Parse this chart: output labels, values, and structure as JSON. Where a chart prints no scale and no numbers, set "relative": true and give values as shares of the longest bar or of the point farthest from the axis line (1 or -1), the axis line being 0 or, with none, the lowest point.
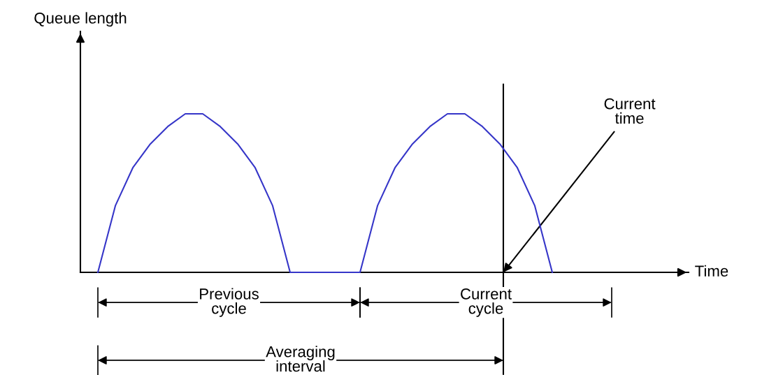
{
  "chart_data": {
    "type": "line",
    "relative": true,
    "marker": "none",
    "line_style": "solid",
    "categories": [
      null,
      null,
      null,
      null,
      null,
      null,
      null,
      null,
      null,
      null,
      null,
      null,
      null,
      null,
      null,
      null,
      null,
      null,
      null,
      null,
      null,
      null,
      null,
      null,
      null,
      null,
      null
    ],
    "series": [
      {
        "color": "#3535c8",
        "values": [
          0,
          0.42,
          0.66,
          0.81,
          0.92,
          1,
          1,
          0.92,
          0.81,
          0.66,
          0.42,
          0,
          0,
          0,
          0,
          0,
          0.42,
          0.66,
          0.81,
          0.92,
          1,
          1,
          0.92,
          0.81,
          0.66,
          0.42,
          0
        ]
      }
    ],
    "annotations": [
      "Queue length",
      "Time",
      "Current\ntime",
      "Previous\ncycle",
      "Current\ncycle",
      "Averaging\ninterval"
    ]
  }
}
